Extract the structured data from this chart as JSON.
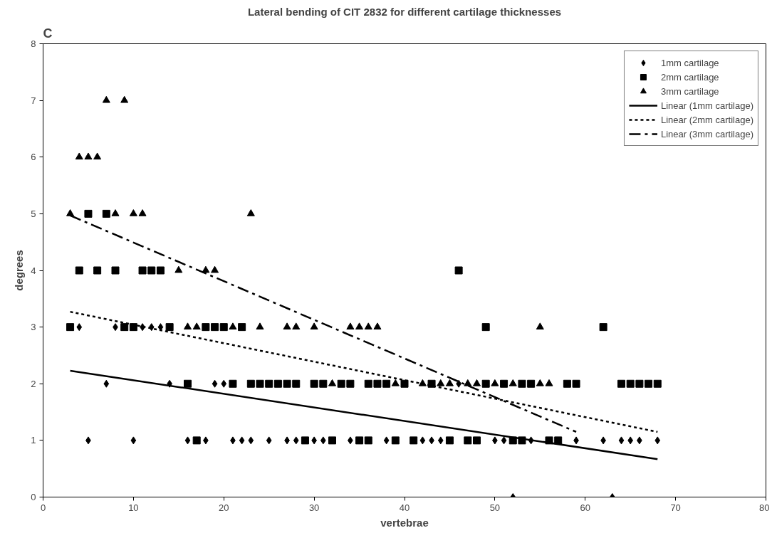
{
  "chart_data": {
    "type": "scatter",
    "title": "Lateral bending of CIT 2832 for different cartilage thicknesses",
    "xlabel": "vertebrae",
    "ylabel": "degrees",
    "annotations": [
      "C"
    ],
    "xlim": [
      0,
      80
    ],
    "ylim": [
      0,
      8
    ],
    "xticks": [
      0,
      10,
      20,
      30,
      40,
      50,
      60,
      70,
      80
    ],
    "yticks": [
      0,
      1,
      2,
      3,
      4,
      5,
      6,
      7,
      8
    ],
    "grid": false,
    "legend": "top right",
    "series": [
      {
        "name": "1mm cartilage",
        "color": "#000000",
        "marker": "diamond",
        "x": [
          4,
          8,
          11,
          12,
          13,
          7,
          14,
          19,
          20,
          46,
          5,
          10,
          16,
          18,
          21,
          22,
          23,
          25,
          27,
          28,
          30,
          31,
          34,
          38,
          42,
          43,
          44,
          50,
          51,
          54,
          59,
          62,
          64,
          65,
          66,
          68,
          52,
          63
        ],
        "values": [
          3,
          3,
          3,
          3,
          3,
          2,
          2,
          2,
          2,
          2,
          1,
          1,
          1,
          1,
          1,
          1,
          1,
          1,
          1,
          1,
          1,
          1,
          1,
          1,
          1,
          1,
          1,
          1,
          1,
          1,
          1,
          1,
          1,
          1,
          1,
          1,
          0,
          0
        ]
      },
      {
        "name": "2mm cartilage",
        "color": "#000000",
        "marker": "square",
        "x": [
          5,
          7,
          4,
          6,
          8,
          11,
          12,
          13,
          46,
          3,
          9,
          10,
          14,
          18,
          19,
          20,
          22,
          49,
          62,
          16,
          21,
          23,
          24,
          25,
          26,
          27,
          28,
          30,
          31,
          33,
          34,
          36,
          37,
          38,
          40,
          43,
          49,
          51,
          53,
          54,
          58,
          59,
          64,
          65,
          66,
          67,
          68,
          17,
          29,
          32,
          35,
          36,
          39,
          41,
          45,
          47,
          48,
          52,
          53,
          56,
          57
        ],
        "values": [
          5,
          5,
          4,
          4,
          4,
          4,
          4,
          4,
          4,
          3,
          3,
          3,
          3,
          3,
          3,
          3,
          3,
          3,
          3,
          2,
          2,
          2,
          2,
          2,
          2,
          2,
          2,
          2,
          2,
          2,
          2,
          2,
          2,
          2,
          2,
          2,
          2,
          2,
          2,
          2,
          2,
          2,
          2,
          2,
          2,
          2,
          2,
          1,
          1,
          1,
          1,
          1,
          1,
          1,
          1,
          1,
          1,
          1,
          1,
          1,
          1
        ]
      },
      {
        "name": "3mm cartilage",
        "color": "#000000",
        "marker": "triangle",
        "x": [
          7,
          9,
          4,
          5,
          6,
          3,
          8,
          10,
          11,
          23,
          15,
          18,
          19,
          16,
          17,
          21,
          24,
          27,
          28,
          30,
          34,
          35,
          36,
          37,
          55,
          32,
          39,
          42,
          44,
          45,
          47,
          48,
          50,
          52,
          55,
          56
        ],
        "values": [
          7,
          7,
          6,
          6,
          6,
          5,
          5,
          5,
          5,
          5,
          4,
          4,
          4,
          3,
          3,
          3,
          3,
          3,
          3,
          3,
          3,
          3,
          3,
          3,
          3,
          2,
          2,
          2,
          2,
          2,
          2,
          2,
          2,
          2,
          2,
          2
        ]
      },
      {
        "name": "Linear (1mm cartilage)",
        "type": "line",
        "color": "#000000",
        "line_style": "solid",
        "x": [
          3,
          68
        ],
        "values": [
          2.23,
          0.67
        ]
      },
      {
        "name": "Linear (2mm cartilage)",
        "type": "line",
        "color": "#000000",
        "line_style": "dotted",
        "x": [
          3,
          68
        ],
        "values": [
          3.27,
          1.15
        ]
      },
      {
        "name": "Linear (3mm cartilage)",
        "type": "line",
        "color": "#000000",
        "line_style": "dashdot",
        "x": [
          3,
          59
        ],
        "values": [
          4.97,
          1.15
        ]
      }
    ]
  }
}
